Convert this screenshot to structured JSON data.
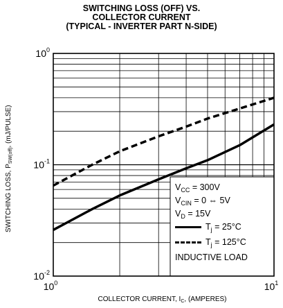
{
  "title_lines": [
    "SWITCHING LOSS (OFF) VS.",
    "COLLECTOR CURRENT",
    "(TYPICAL - INVERTER PART N-SIDE)"
  ],
  "chart_data": {
    "type": "line",
    "xscale": "log",
    "yscale": "log",
    "xlim": [
      1,
      10
    ],
    "ylim": [
      0.01,
      1
    ],
    "grid": true,
    "xlabel": "COLLECTOR CURRENT, I_C, (AMPERES)",
    "ylabel": "SWITCHING LOSS, P_SW(off), (mJ/PULSE)",
    "xticks": [
      {
        "base": "10",
        "exp": "0"
      },
      {
        "base": "10",
        "exp": "1"
      }
    ],
    "yticks": [
      {
        "base": "10",
        "exp": "-2"
      },
      {
        "base": "10",
        "exp": "-1"
      },
      {
        "base": "10",
        "exp": "0"
      }
    ],
    "series": [
      {
        "name": "Tj = 25°C",
        "style": "solid",
        "x": [
          1,
          1.5,
          2,
          3,
          4,
          5,
          7,
          10
        ],
        "y": [
          0.026,
          0.04,
          0.053,
          0.074,
          0.093,
          0.11,
          0.15,
          0.23
        ]
      },
      {
        "name": "Tj = 125°C",
        "style": "dashed",
        "x": [
          1,
          1.5,
          2,
          3,
          4,
          5,
          7,
          10
        ],
        "y": [
          0.065,
          0.1,
          0.132,
          0.18,
          0.22,
          0.26,
          0.32,
          0.4
        ]
      }
    ]
  },
  "legend": {
    "vcc_main": "V",
    "vcc_sub": "CC",
    "vcc_rest": " = 300V",
    "vcin_main": "V",
    "vcin_sub": "CIN",
    "vcin_rest": " = 0 ⇔ 5V",
    "vd_main": "V",
    "vd_sub": "D",
    "vd_rest": " = 15V",
    "t25_main": "T",
    "t25_sub": "j",
    "t25_rest": " = 25°C",
    "t125_main": "T",
    "t125_sub": "j",
    "t125_rest": " = 125°C",
    "load": "INDUCTIVE LOAD"
  },
  "axis_text": {
    "x_pre": "COLLECTOR CURRENT, I",
    "x_sub": "C",
    "x_post": ", (AMPERES)",
    "y_pre": "SWITCHING LOSS, P",
    "y_sub": "SW(off)",
    "y_post": ", (mJ/PULSE)"
  }
}
